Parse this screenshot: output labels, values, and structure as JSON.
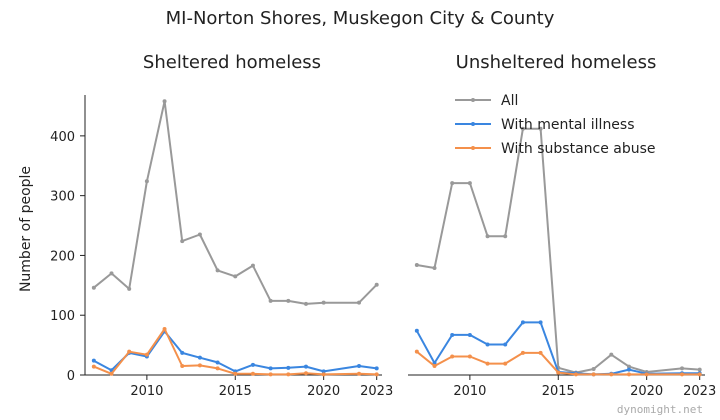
{
  "chart_data": {
    "type": "line",
    "title": "MI-Norton Shores, Muskegon City & County",
    "ylabel": "Number of people",
    "ylim": [
      0,
      460
    ],
    "xlim": [
      2006.5,
      2023.3
    ],
    "yticks": [
      0,
      100,
      200,
      300,
      400
    ],
    "xticks": [
      2010,
      2015,
      2020,
      2023
    ],
    "legend_placement": "top-right",
    "watermark": "dynomight.net",
    "colors": {
      "All": "#999999",
      "With mental illness": "#3a86e0",
      "With substance abuse": "#f4904b"
    },
    "panels": [
      {
        "subtitle": "Sheltered homeless",
        "series": [
          {
            "name": "All",
            "x": [
              2007,
              2008,
              2009,
              2010,
              2011,
              2012,
              2013,
              2014,
              2015,
              2016,
              2017,
              2018,
              2019,
              2020,
              2022,
              2023
            ],
            "values": [
              146,
              170,
              144,
              324,
              458,
              224,
              235,
              175,
              165,
              183,
              124,
              124,
              119,
              121,
              121,
              151
            ]
          },
          {
            "name": "With mental illness",
            "x": [
              2007,
              2008,
              2009,
              2010,
              2011,
              2012,
              2013,
              2014,
              2015,
              2016,
              2017,
              2018,
              2019,
              2020,
              2022,
              2023
            ],
            "values": [
              24,
              8,
              37,
              31,
              73,
              37,
              29,
              21,
              6,
              17,
              11,
              12,
              14,
              6,
              15,
              11
            ]
          },
          {
            "name": "With substance abuse",
            "x": [
              2007,
              2008,
              2009,
              2010,
              2011,
              2012,
              2013,
              2014,
              2015,
              2016,
              2017,
              2018,
              2019,
              2020,
              2022,
              2023
            ],
            "values": [
              14,
              2,
              39,
              34,
              77,
              15,
              16,
              11,
              2,
              2,
              1,
              1,
              3,
              1,
              2,
              1
            ]
          }
        ]
      },
      {
        "subtitle": "Unsheltered homeless",
        "series": [
          {
            "name": "All",
            "x": [
              2007,
              2008,
              2009,
              2010,
              2011,
              2012,
              2013,
              2014,
              2015,
              2016,
              2017,
              2018,
              2019,
              2020,
              2022,
              2023
            ],
            "values": [
              184,
              179,
              321,
              321,
              232,
              232,
              412,
              412,
              12,
              4,
              10,
              34,
              14,
              5,
              11,
              9
            ]
          },
          {
            "name": "With mental illness",
            "x": [
              2007,
              2008,
              2009,
              2010,
              2011,
              2012,
              2013,
              2014,
              2015,
              2016,
              2017,
              2018,
              2019,
              2020,
              2022,
              2023
            ],
            "values": [
              74,
              20,
              67,
              67,
              51,
              51,
              88,
              88,
              5,
              3,
              1,
              2,
              9,
              2,
              3,
              3
            ]
          },
          {
            "name": "With substance abuse",
            "x": [
              2007,
              2008,
              2009,
              2010,
              2011,
              2012,
              2013,
              2014,
              2015,
              2016,
              2017,
              2018,
              2019,
              2020,
              2022,
              2023
            ],
            "values": [
              39,
              15,
              31,
              31,
              19,
              19,
              37,
              37,
              4,
              1,
              1,
              1,
              1,
              1,
              1,
              1
            ]
          }
        ]
      }
    ]
  }
}
